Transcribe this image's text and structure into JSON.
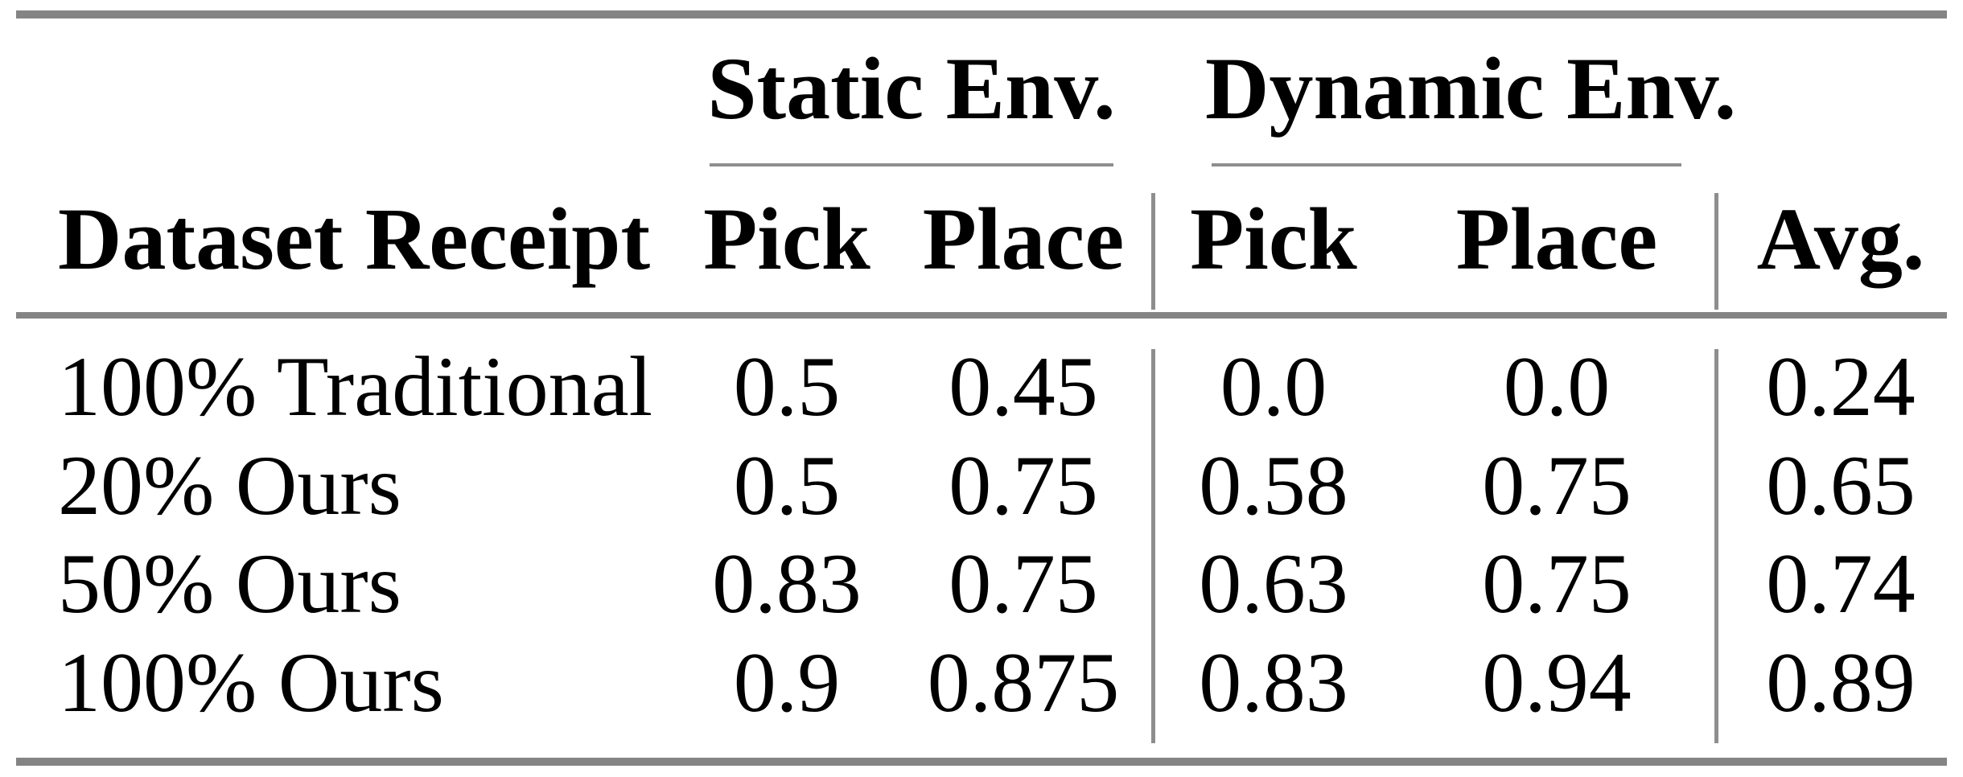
{
  "table": {
    "group_headers": [
      {
        "label": "Static Env."
      },
      {
        "label": "Dynamic Env."
      }
    ],
    "columns": {
      "row_label": "Dataset Receipt",
      "static": [
        "Pick",
        "Place"
      ],
      "dynamic": [
        "Pick",
        "Place"
      ],
      "avg": "Avg."
    },
    "rows": [
      {
        "label": "100% Traditional",
        "values": [
          "0.5",
          "0.45",
          "0.0",
          "0.0",
          "0.24"
        ]
      },
      {
        "label": "20% Ours",
        "values": [
          "0.5",
          "0.75",
          "0.58",
          "0.75",
          "0.65"
        ]
      },
      {
        "label": "50% Ours",
        "values": [
          "0.83",
          "0.75",
          "0.63",
          "0.75",
          "0.74"
        ]
      },
      {
        "label": "100% Ours",
        "values": [
          "0.9",
          "0.875",
          "0.83",
          "0.94",
          "0.89"
        ]
      }
    ]
  },
  "chart_data": {
    "type": "table",
    "columns": [
      "Dataset Receipt",
      "Static Env. Pick",
      "Static Env. Place",
      "Dynamic Env. Pick",
      "Dynamic Env. Place",
      "Avg."
    ],
    "rows": [
      [
        "100% Traditional",
        0.5,
        0.45,
        0.0,
        0.0,
        0.24
      ],
      [
        "20% Ours",
        0.5,
        0.75,
        0.58,
        0.75,
        0.65
      ],
      [
        "50% Ours",
        0.83,
        0.75,
        0.63,
        0.75,
        0.74
      ],
      [
        "100% Ours",
        0.9,
        0.875,
        0.83,
        0.94,
        0.89
      ]
    ]
  },
  "colors": {
    "rule_gray": "#848484",
    "text": "#000000",
    "background": "#ffffff"
  }
}
